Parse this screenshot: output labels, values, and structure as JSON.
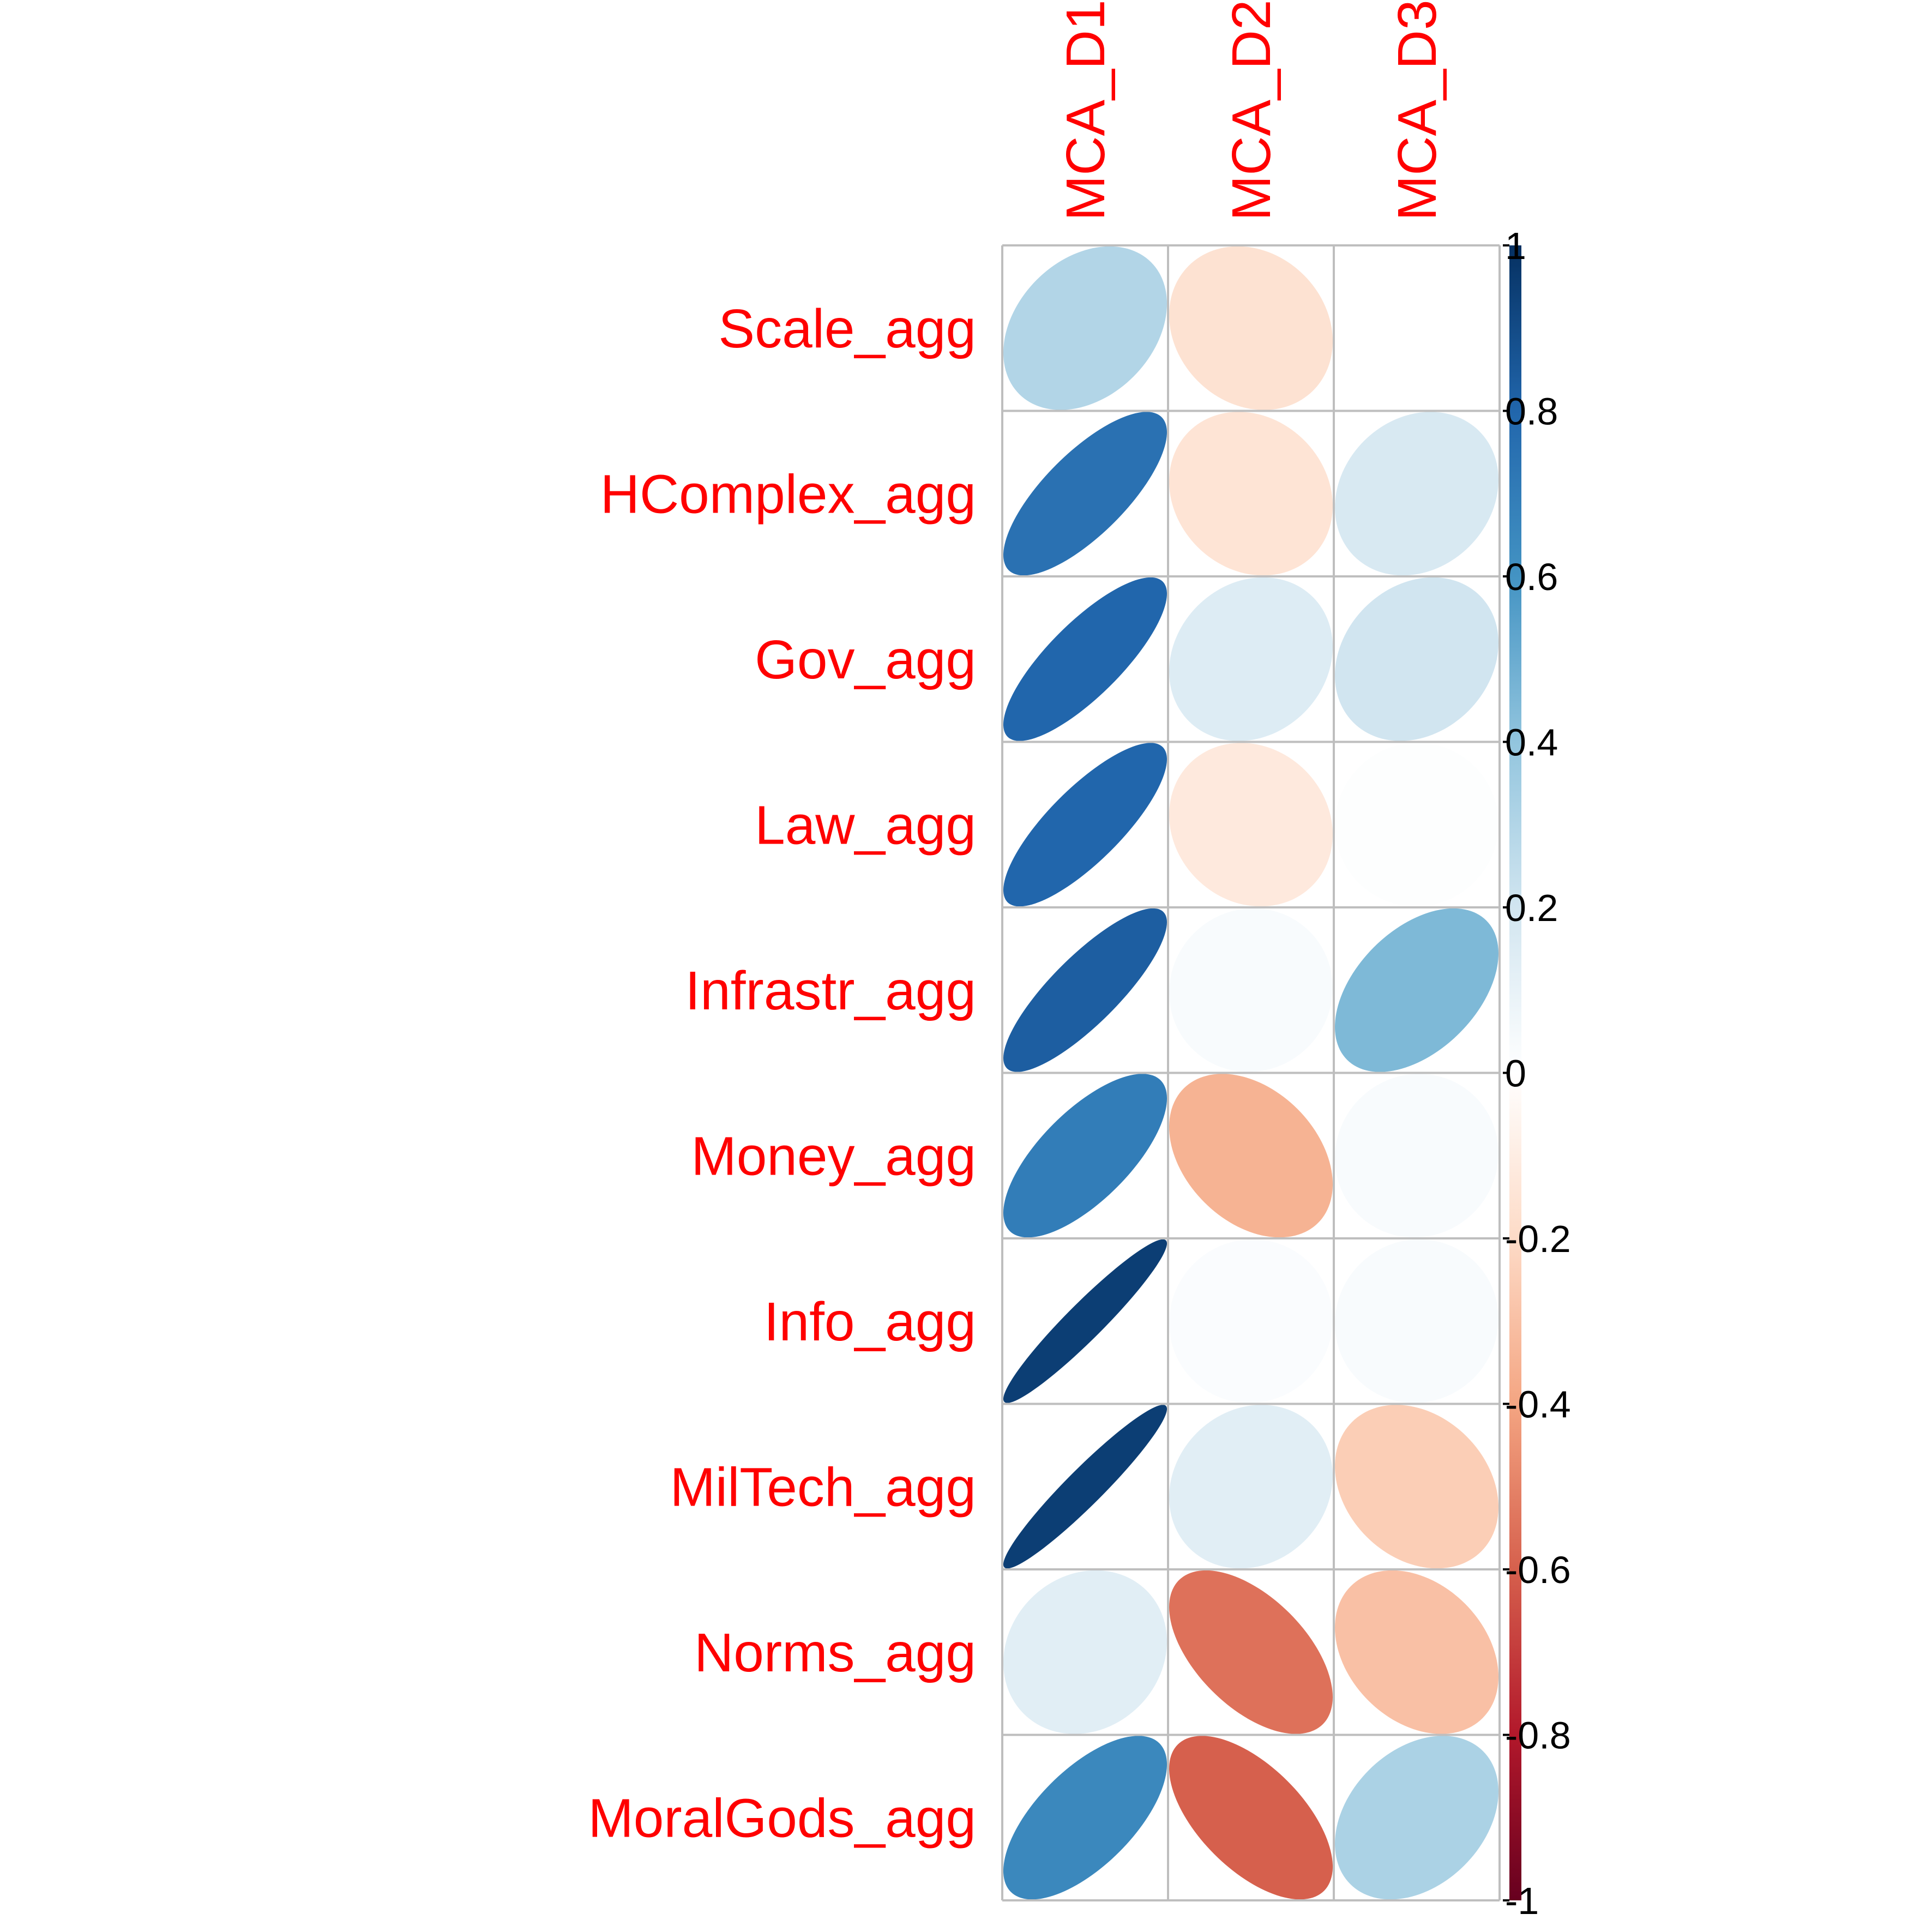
{
  "chart_data": {
    "type": "heatmap",
    "style": "ellipse correlation matrix",
    "columns": [
      "MCA_D1",
      "MCA_D2",
      "MCA_D3"
    ],
    "rows": [
      "Scale_agg",
      "HComplex_agg",
      "Gov_agg",
      "Law_agg",
      "Infrastr_agg",
      "Money_agg",
      "Info_agg",
      "MilTech_agg",
      "Norms_agg",
      "MoralGods_agg"
    ],
    "values": [
      [
        0.3,
        -0.16,
        0.0
      ],
      [
        0.75,
        -0.15,
        0.17
      ],
      [
        0.8,
        0.15,
        0.2
      ],
      [
        0.8,
        -0.12,
        0.01
      ],
      [
        0.83,
        0.03,
        0.45
      ],
      [
        0.7,
        -0.35,
        0.03
      ],
      [
        0.95,
        0.02,
        0.03
      ],
      [
        0.95,
        0.13,
        -0.25
      ],
      [
        0.13,
        -0.55,
        -0.3
      ],
      [
        0.65,
        -0.6,
        0.32
      ]
    ],
    "colorbar": {
      "range": [
        -1,
        1
      ],
      "ticks": [
        "1",
        "0.8",
        "0.6",
        "0.4",
        "0.2",
        "0",
        "-0.2",
        "-0.4",
        "-0.6",
        "-0.8",
        "-1"
      ]
    },
    "colors": {
      "label": "#ff0000",
      "grid": "#bebebe",
      "scale": [
        "#67001f",
        "#b2182b",
        "#d6604d",
        "#f4a582",
        "#fddbc7",
        "#ffffff",
        "#d1e5f0",
        "#92c5de",
        "#4393c3",
        "#2166ac",
        "#053061"
      ]
    },
    "grid": true,
    "legend_position": "right"
  }
}
